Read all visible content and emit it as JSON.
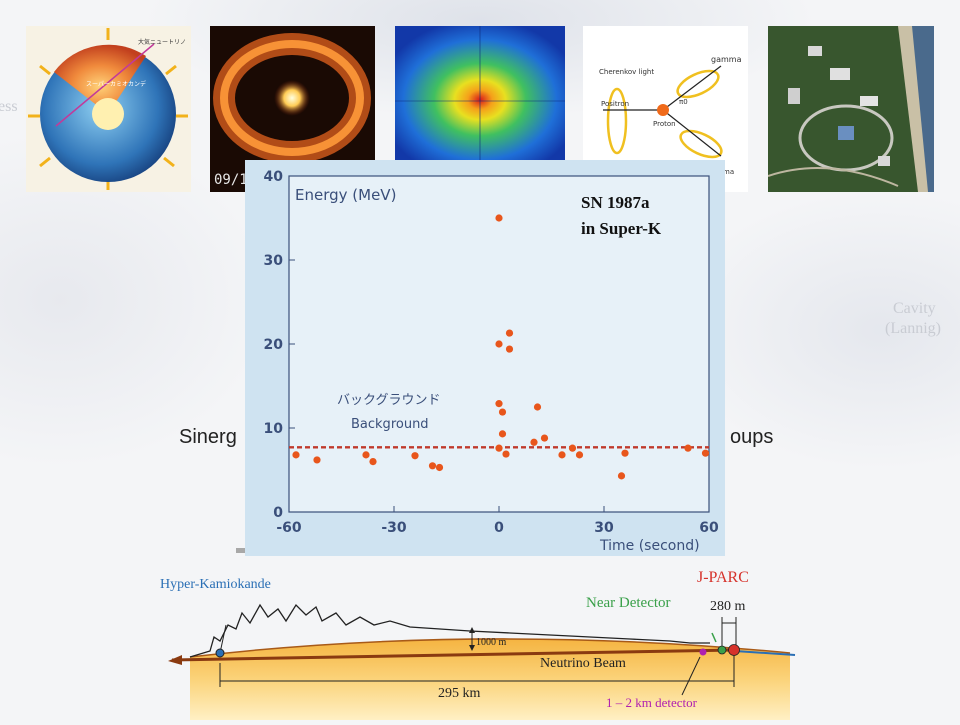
{
  "background": {
    "fragments": [
      "ess",
      "Cavity",
      "(Lannig)"
    ]
  },
  "photos": [
    {
      "name": "earth-cutaway-image",
      "labels": [
        "大気ニュートリノ",
        "スーパーカミオカンデ"
      ]
    },
    {
      "name": "sn1987a-ring-image",
      "caption": "09/1"
    },
    {
      "name": "sun-neutrino-image"
    },
    {
      "name": "proton-decay-diagram",
      "labels": [
        "Cherenkov light",
        "gamma",
        "Positron",
        "Proton",
        "π0",
        "ma"
      ]
    },
    {
      "name": "jparc-aerial-photo"
    }
  ],
  "overlay_text": {
    "left": "Sinerg",
    "right": "oups"
  },
  "chart_annotation": {
    "line1": "SN 1987a",
    "line2": "in Super-K"
  },
  "chart_data": {
    "type": "scatter",
    "title": "",
    "ylabel": "Energy (MeV)",
    "xlabel": "Time (second)",
    "xlim": [
      -60,
      60
    ],
    "ylim": [
      0,
      40
    ],
    "xticks": [
      "-60",
      "-30",
      "0",
      "30",
      "60"
    ],
    "yticks": [
      "0",
      "10",
      "20",
      "30",
      "40"
    ],
    "background_label_jp": "バックグラウンド",
    "background_label_en": "Background",
    "background_level": 7.7,
    "points": [
      {
        "x": -58,
        "y": 6.8
      },
      {
        "x": -52,
        "y": 6.2
      },
      {
        "x": -38,
        "y": 6.8
      },
      {
        "x": -36,
        "y": 6.0
      },
      {
        "x": -24,
        "y": 6.7
      },
      {
        "x": -19,
        "y": 5.5
      },
      {
        "x": -17,
        "y": 5.3
      },
      {
        "x": 0,
        "y": 35.0
      },
      {
        "x": 3,
        "y": 21.3
      },
      {
        "x": 0,
        "y": 20.0
      },
      {
        "x": 3,
        "y": 19.4
      },
      {
        "x": 0,
        "y": 12.9
      },
      {
        "x": 1,
        "y": 11.9
      },
      {
        "x": 1,
        "y": 9.3
      },
      {
        "x": 0,
        "y": 7.6
      },
      {
        "x": 2,
        "y": 6.9
      },
      {
        "x": 10,
        "y": 8.3
      },
      {
        "x": 11,
        "y": 12.5
      },
      {
        "x": 13,
        "y": 8.8
      },
      {
        "x": 18,
        "y": 6.8
      },
      {
        "x": 21,
        "y": 7.6
      },
      {
        "x": 23,
        "y": 6.8
      },
      {
        "x": 35,
        "y": 4.3
      },
      {
        "x": 36,
        "y": 7.0
      },
      {
        "x": 54,
        "y": 7.6
      },
      {
        "x": 59,
        "y": 7.0
      }
    ],
    "colors": {
      "point": "#e8561c",
      "dashed": "#c0392b",
      "text": "#3a4f7a"
    }
  },
  "diagram": {
    "hyper_kamiokande": "Hyper-Kamiokande",
    "jparc": "J-PARC",
    "near_detector": "Near Detector",
    "dist_280": "280 m",
    "depth_1000": "1000 m",
    "beam": "Neutrino Beam",
    "dist_295": "295 km",
    "km_detector": "1 – 2 km detector",
    "colors": {
      "hk": "#2a6fb5",
      "jparc": "#d6322b",
      "near": "#3aa04a",
      "km": "#b020b0"
    }
  }
}
